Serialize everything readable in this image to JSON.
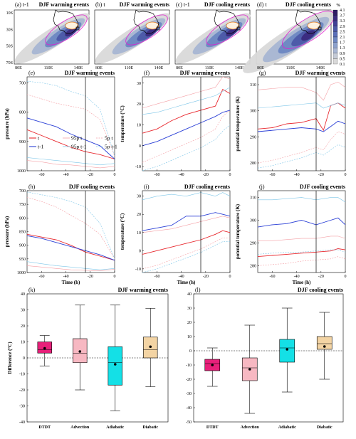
{
  "colors": {
    "red": "#e8282e",
    "blue": "#2a3fd6",
    "pink": "#f4a0a6",
    "lightblue": "#7ec6e8",
    "gray": "#8a8a8a",
    "boxes": [
      "#e8207a",
      "#f7b8c2",
      "#14e0e6",
      "#f3d4a4"
    ],
    "colorbar": [
      "#d9d9d9",
      "#c4cad6",
      "#a8b6d3",
      "#8ba0cc",
      "#6d87c2",
      "#5a6fb8",
      "#4b58a8",
      "#403f96",
      "#3a2a7e",
      "#2e1c63"
    ]
  },
  "maps": {
    "panels": [
      {
        "label": "(a) t-1",
        "title": "DJF warming events"
      },
      {
        "label": "(b) t",
        "title": "DJF warming events"
      },
      {
        "label": "(c) t-1",
        "title": "DJF cooling events"
      },
      {
        "label": "(d) t",
        "title": "DJF cooling events"
      }
    ],
    "yticks": [
      "10S",
      "30S",
      "50S",
      "70S"
    ],
    "xticks": [
      "80E",
      "110E",
      "140E"
    ],
    "colorbar_unit": "%",
    "colorbar_ticks": [
      "4.1",
      "3.7",
      "3.3",
      "2.9",
      "2.5",
      "2.1",
      "1.7",
      "1.3",
      "0.9",
      "0.5",
      "0.1"
    ]
  },
  "legend": {
    "entries": [
      "t",
      "t-1",
      "95p t",
      "95p t-1",
      "5p t",
      "5p t-1"
    ]
  },
  "chart_data": [
    {
      "type": "line",
      "panel": "(e)",
      "title": "DJF warming events",
      "xlabel": "",
      "ylabel": "pressure (hPa)",
      "xlim": [
        -72,
        0
      ],
      "ylim": [
        1000,
        680
      ],
      "vline": -24,
      "xticks": [
        "-60",
        "-40",
        "-20",
        "0"
      ],
      "yticks": [
        "1000",
        "900",
        "800",
        "700"
      ],
      "series": [
        {
          "name": "t",
          "x": [
            -72,
            -60,
            -48,
            -36,
            -24,
            -12,
            0
          ],
          "y": [
            860,
            880,
            900,
            920,
            935,
            945,
            960
          ]
        },
        {
          "name": "t-1",
          "x": [
            -72,
            -60,
            -48,
            -36,
            -24,
            -12,
            0
          ],
          "y": [
            820,
            835,
            850,
            875,
            895,
            915,
            960
          ]
        },
        {
          "name": "95p t",
          "x": [
            -72,
            -60,
            -48,
            -36,
            -24,
            -12,
            0
          ],
          "y": [
            965,
            970,
            978,
            980,
            985,
            990,
            985
          ]
        },
        {
          "name": "95p t-1",
          "x": [
            -72,
            -60,
            -48,
            -36,
            -24,
            -12,
            0
          ],
          "y": [
            955,
            960,
            965,
            970,
            975,
            980,
            975
          ]
        },
        {
          "name": "5p t",
          "x": [
            -72,
            -60,
            -48,
            -36,
            -24,
            -12,
            0
          ],
          "y": [
            740,
            755,
            770,
            780,
            790,
            825,
            950
          ]
        },
        {
          "name": "5p t-1",
          "x": [
            -72,
            -60,
            -48,
            -36,
            -24,
            -12,
            0
          ],
          "y": [
            695,
            700,
            710,
            730,
            745,
            790,
            950
          ]
        }
      ]
    },
    {
      "type": "line",
      "panel": "(f)",
      "title": "DJF warming events",
      "xlabel": "",
      "ylabel": "temperature (°C)",
      "xlim": [
        -72,
        0
      ],
      "ylim": [
        -12,
        33
      ],
      "vline": -24,
      "xticks": [
        "-60",
        "-40",
        "-20",
        "0"
      ],
      "yticks": [
        "-10",
        "0",
        "10",
        "20",
        "30"
      ],
      "series": [
        {
          "name": "t",
          "x": [
            -72,
            -60,
            -48,
            -36,
            -24,
            -12,
            -6,
            0
          ],
          "y": [
            6,
            8,
            12,
            15,
            17,
            19,
            27,
            25
          ]
        },
        {
          "name": "t-1",
          "x": [
            -72,
            -60,
            -48,
            -36,
            -24,
            -12,
            -6,
            0
          ],
          "y": [
            0,
            2,
            5,
            8,
            11,
            14,
            16,
            17
          ]
        },
        {
          "name": "95p t",
          "x": [
            -72,
            -60,
            -48,
            -36,
            -24,
            -12,
            -6,
            0
          ],
          "y": [
            18,
            20,
            22,
            24,
            26,
            28,
            33,
            32
          ]
        },
        {
          "name": "95p t-1",
          "x": [
            -72,
            -60,
            -48,
            -36,
            -24,
            -12,
            -6,
            0
          ],
          "y": [
            15,
            16,
            18,
            20,
            22,
            24,
            26,
            28
          ]
        },
        {
          "name": "5p t",
          "x": [
            -72,
            -60,
            -48,
            -36,
            -24,
            -12,
            -6,
            0
          ],
          "y": [
            -8,
            -5,
            -2,
            1,
            4,
            8,
            14,
            17
          ]
        },
        {
          "name": "5p t-1",
          "x": [
            -72,
            -60,
            -48,
            -36,
            -24,
            -12,
            -6,
            0
          ],
          "y": [
            -12,
            -10,
            -7,
            -4,
            -1,
            3,
            7,
            10
          ]
        }
      ]
    },
    {
      "type": "line",
      "panel": "(g)",
      "title": "DJF warming events",
      "xlabel": "",
      "ylabel": "potential temperature (K)",
      "xlim": [
        -72,
        0
      ],
      "ylim": [
        277,
        313
      ],
      "vline": -24,
      "xticks": [
        "-60",
        "-40",
        "-20",
        "0"
      ],
      "yticks": [
        "280",
        "290",
        "300",
        "310"
      ],
      "series": [
        {
          "name": "t",
          "x": [
            -72,
            -60,
            -48,
            -36,
            -24,
            -18,
            -12,
            -6,
            0
          ],
          "y": [
            293,
            293.5,
            295,
            295.5,
            297,
            292.5,
            302,
            303,
            301
          ]
        },
        {
          "name": "t-1",
          "x": [
            -72,
            -60,
            -48,
            -36,
            -24,
            -18,
            -12,
            -6,
            0
          ],
          "y": [
            292,
            292.5,
            293,
            293.5,
            293,
            292,
            294,
            296,
            295
          ]
        },
        {
          "name": "95p t",
          "x": [
            -72,
            -60,
            -48,
            -36,
            -24,
            -18,
            -12,
            -6,
            0
          ],
          "y": [
            308,
            308.5,
            309,
            309,
            307,
            304,
            310,
            311,
            309
          ]
        },
        {
          "name": "95p t-1",
          "x": [
            -72,
            -60,
            -48,
            -36,
            -24,
            -18,
            -12,
            -6,
            0
          ],
          "y": [
            301,
            301.5,
            302,
            302.5,
            303,
            301,
            302,
            303,
            302
          ]
        },
        {
          "name": "5p t",
          "x": [
            -72,
            -60,
            -48,
            -36,
            -24,
            -18,
            -12,
            -6,
            0
          ],
          "y": [
            280,
            281,
            282.5,
            284,
            286,
            285,
            289,
            292,
            291
          ]
        },
        {
          "name": "5p t-1",
          "x": [
            -72,
            -60,
            -48,
            -36,
            -24,
            -18,
            -12,
            -6,
            0
          ],
          "y": [
            278,
            279,
            280.5,
            282,
            284,
            283,
            285,
            287,
            286
          ]
        }
      ]
    },
    {
      "type": "line",
      "panel": "(h)",
      "title": "DJF cooling events",
      "xlabel": "Time (h)",
      "ylabel": "pressure (hPa)",
      "xlim": [
        -72,
        0
      ],
      "ylim": [
        1000,
        700
      ],
      "vline": -24,
      "xticks": [
        "-60",
        "-40",
        "-20",
        "0"
      ],
      "yticks": [
        "1000",
        "950",
        "900",
        "850",
        "800",
        "750",
        "700"
      ],
      "series": [
        {
          "name": "t",
          "x": [
            -72,
            -60,
            -48,
            -36,
            -24,
            -12,
            0
          ],
          "y": [
            860,
            870,
            880,
            900,
            925,
            940,
            955
          ]
        },
        {
          "name": "t-1",
          "x": [
            -72,
            -60,
            -48,
            -36,
            -24,
            -12,
            0
          ],
          "y": [
            865,
            875,
            890,
            905,
            920,
            935,
            955
          ]
        },
        {
          "name": "95p t",
          "x": [
            -72,
            -60,
            -48,
            -36,
            -24,
            -12,
            0
          ],
          "y": [
            975,
            980,
            985,
            990,
            992,
            994,
            988
          ]
        },
        {
          "name": "95p t-1",
          "x": [
            -72,
            -60,
            -48,
            -36,
            -24,
            -12,
            0
          ],
          "y": [
            960,
            968,
            975,
            980,
            985,
            990,
            985
          ]
        },
        {
          "name": "5p t",
          "x": [
            -72,
            -60,
            -48,
            -36,
            -24,
            -12,
            0
          ],
          "y": [
            725,
            740,
            760,
            790,
            820,
            860,
            950
          ]
        },
        {
          "name": "5p t-1",
          "x": [
            -72,
            -60,
            -48,
            -36,
            -24,
            -12,
            0
          ],
          "y": [
            705,
            715,
            725,
            740,
            760,
            820,
            950
          ]
        }
      ]
    },
    {
      "type": "line",
      "panel": "(i)",
      "title": "DJF cooling events",
      "xlabel": "Time (h)",
      "ylabel": "temperature (°C)",
      "xlim": [
        -72,
        0
      ],
      "ylim": [
        -12,
        33
      ],
      "vline": -24,
      "xticks": [
        "-60",
        "-40",
        "-20",
        "0"
      ],
      "yticks": [
        "-10",
        "0",
        "10",
        "20",
        "30"
      ],
      "series": [
        {
          "name": "t",
          "x": [
            -72,
            -60,
            -48,
            -36,
            -24,
            -12,
            -6,
            0
          ],
          "y": [
            -2,
            0,
            2,
            4,
            6,
            9,
            11,
            10
          ]
        },
        {
          "name": "t-1",
          "x": [
            -72,
            -60,
            -48,
            -36,
            -24,
            -12,
            -6,
            0
          ],
          "y": [
            11,
            12.5,
            14,
            19,
            19,
            21,
            20,
            19
          ]
        },
        {
          "name": "95p t",
          "x": [
            -72,
            -60,
            -48,
            -36,
            -24,
            -12,
            -6,
            0
          ],
          "y": [
            10,
            11,
            12,
            14,
            16,
            18,
            19,
            18
          ]
        },
        {
          "name": "95p t-1",
          "x": [
            -72,
            -60,
            -48,
            -36,
            -24,
            -12,
            -6,
            0
          ],
          "y": [
            28,
            30,
            31,
            30,
            32,
            30,
            32,
            30
          ]
        },
        {
          "name": "5p t",
          "x": [
            -72,
            -60,
            -48,
            -36,
            -24,
            -12,
            -6,
            0
          ],
          "y": [
            -10,
            -8,
            -5,
            -2,
            1,
            5,
            7,
            7
          ]
        },
        {
          "name": "5p t-1",
          "x": [
            -72,
            -60,
            -48,
            -36,
            -24,
            -12,
            -6,
            0
          ],
          "y": [
            -12,
            -10,
            -7,
            -4,
            -1,
            3,
            5,
            5
          ]
        }
      ]
    },
    {
      "type": "line",
      "panel": "(j)",
      "title": "DJF cooling events",
      "xlabel": "Time (h)",
      "ylabel": "potential temperature (K)",
      "xlim": [
        -72,
        0
      ],
      "ylim": [
        277,
        313
      ],
      "vline": -24,
      "xticks": [
        "-60",
        "-40",
        "-20",
        "0"
      ],
      "yticks": [
        "280",
        "290",
        "300",
        "310"
      ],
      "series": [
        {
          "name": "t",
          "x": [
            -72,
            -60,
            -48,
            -36,
            -24,
            -12,
            -6,
            0
          ],
          "y": [
            284,
            284.5,
            285,
            285.5,
            286,
            286.5,
            287.5,
            287
          ]
        },
        {
          "name": "t-1",
          "x": [
            -72,
            -60,
            -48,
            -36,
            -24,
            -12,
            -6,
            0
          ],
          "y": [
            297,
            298,
            298.5,
            300,
            298,
            300,
            301,
            298
          ]
        },
        {
          "name": "95p t",
          "x": [
            -72,
            -60,
            -48,
            -36,
            -24,
            -12,
            -6,
            0
          ],
          "y": [
            291,
            291,
            291.5,
            292,
            292,
            293,
            293,
            292
          ]
        },
        {
          "name": "95p t-1",
          "x": [
            -72,
            -60,
            -48,
            -36,
            -24,
            -12,
            -6,
            0
          ],
          "y": [
            309,
            309,
            309.5,
            310,
            309,
            310,
            310,
            308
          ]
        },
        {
          "name": "5p t",
          "x": [
            -72,
            -60,
            -48,
            -36,
            -24,
            -12,
            -6,
            0
          ],
          "y": [
            280,
            280.5,
            281,
            282,
            282.5,
            283,
            284,
            283
          ]
        },
        {
          "name": "5p t-1",
          "x": [
            -72,
            -60,
            -48,
            -36,
            -24,
            -12,
            -6,
            0
          ],
          "y": [
            285,
            285.5,
            286,
            286,
            286.5,
            287,
            287,
            286
          ]
        }
      ]
    },
    {
      "type": "box",
      "panel": "(k)",
      "title": "DJF warming events",
      "ylabel": "Difference (°C)",
      "ylim": [
        -40,
        40
      ],
      "yticks": [
        "40",
        "30",
        "20",
        "10",
        "0",
        "-10",
        "-20",
        "-30",
        "-40"
      ],
      "categories": [
        "DTDT",
        "Advection",
        "Adiabatic",
        "Diabatic"
      ],
      "boxes": [
        {
          "min": -5,
          "q1": 3,
          "median": 5,
          "q3": 10,
          "max": 14,
          "mean": 6
        },
        {
          "min": -20,
          "q1": -3,
          "median": 3,
          "q3": 12,
          "max": 33,
          "mean": 4
        },
        {
          "min": -33,
          "q1": -17,
          "median": -3,
          "q3": 7,
          "max": 33,
          "mean": -4
        },
        {
          "min": -18,
          "q1": 0,
          "median": 5,
          "q3": 13,
          "max": 31,
          "mean": 7
        }
      ]
    },
    {
      "type": "box",
      "panel": "(l)",
      "title": "DJF cooling events",
      "ylabel": "",
      "ylim": [
        -50,
        40
      ],
      "yticks": [
        "40",
        "30",
        "20",
        "10",
        "0",
        "-10",
        "-20",
        "-30",
        "-40",
        "-50"
      ],
      "categories": [
        "DTDT",
        "Advection",
        "Adiabatic",
        "Diabatic"
      ],
      "boxes": [
        {
          "min": -25,
          "q1": -14,
          "median": -9,
          "q3": -6,
          "max": 2,
          "mean": -10
        },
        {
          "min": -44,
          "q1": -21,
          "median": -12,
          "q3": -5,
          "max": 18,
          "mean": -13
        },
        {
          "min": -29,
          "q1": -8,
          "median": 2,
          "q3": 8,
          "max": 30,
          "mean": 1
        },
        {
          "min": -20,
          "q1": 1,
          "median": 5,
          "q3": 10,
          "max": 27,
          "mean": 3
        }
      ]
    }
  ]
}
